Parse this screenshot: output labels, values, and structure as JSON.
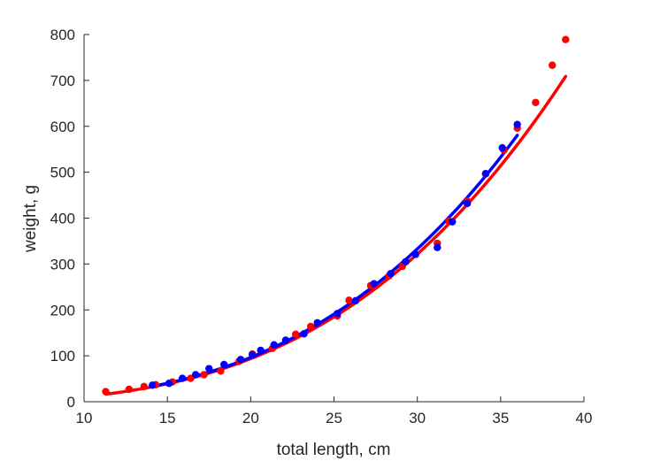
{
  "chart_data": {
    "type": "scatter",
    "title": "",
    "xlabel": "total length, cm",
    "ylabel": "weight, g",
    "xlim": [
      10,
      40
    ],
    "ylim": [
      0,
      800
    ],
    "xticks": [
      10,
      15,
      20,
      25,
      30,
      35,
      40
    ],
    "yticks": [
      0,
      100,
      200,
      300,
      400,
      500,
      600,
      700,
      800
    ],
    "grid": false,
    "legend": "none",
    "series": [
      {
        "name": "red-points",
        "color": "#ff0000",
        "kind": "scatter",
        "points": [
          [
            11.3,
            22
          ],
          [
            12.7,
            27
          ],
          [
            13.6,
            33
          ],
          [
            14.3,
            37
          ],
          [
            15.3,
            43
          ],
          [
            16.4,
            51
          ],
          [
            17.2,
            59
          ],
          [
            18.2,
            67
          ],
          [
            19.3,
            88
          ],
          [
            20.1,
            104
          ],
          [
            21.3,
            116
          ],
          [
            22.7,
            147
          ],
          [
            23.6,
            164
          ],
          [
            25.2,
            187
          ],
          [
            25.9,
            221
          ],
          [
            27.2,
            253
          ],
          [
            28.3,
            274
          ],
          [
            29.1,
            295
          ],
          [
            31.2,
            345
          ],
          [
            31.9,
            393
          ],
          [
            33.0,
            437
          ],
          [
            34.1,
            496
          ],
          [
            35.2,
            548
          ],
          [
            36.0,
            596
          ],
          [
            37.1,
            652
          ],
          [
            38.1,
            733
          ],
          [
            38.9,
            789
          ]
        ]
      },
      {
        "name": "blue-points",
        "color": "#0000ff",
        "kind": "scatter",
        "points": [
          [
            14.1,
            36
          ],
          [
            15.1,
            40
          ],
          [
            15.9,
            51
          ],
          [
            16.7,
            59
          ],
          [
            17.5,
            72
          ],
          [
            18.4,
            81
          ],
          [
            19.4,
            92
          ],
          [
            20.1,
            102
          ],
          [
            20.6,
            112
          ],
          [
            21.4,
            124
          ],
          [
            22.1,
            134
          ],
          [
            23.2,
            148
          ],
          [
            24.0,
            172
          ],
          [
            25.2,
            192
          ],
          [
            26.3,
            220
          ],
          [
            27.4,
            257
          ],
          [
            28.4,
            279
          ],
          [
            29.3,
            305
          ],
          [
            29.9,
            321
          ],
          [
            31.2,
            336
          ],
          [
            32.1,
            392
          ],
          [
            33.0,
            432
          ],
          [
            34.1,
            497
          ],
          [
            35.1,
            553
          ],
          [
            36.0,
            604
          ]
        ]
      },
      {
        "name": "red-fit",
        "color": "#ff0000",
        "kind": "line",
        "a": 0.0104,
        "b": 3.04,
        "x_range": [
          11.3,
          38.9
        ]
      },
      {
        "name": "blue-fit",
        "color": "#0000ff",
        "kind": "line",
        "a": 0.0104,
        "b": 3.05,
        "x_range": [
          14.0,
          36.0
        ]
      }
    ]
  }
}
